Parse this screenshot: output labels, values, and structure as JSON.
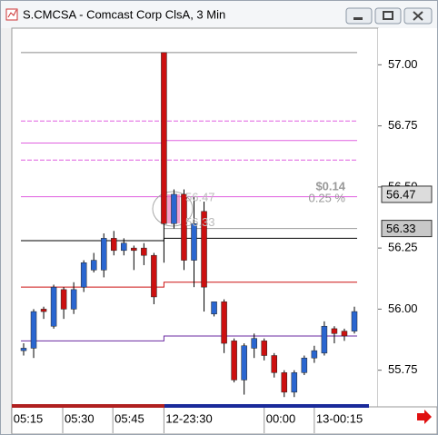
{
  "window_title": "S.CMCSA - Comcast Corp ClsA, 3 Min",
  "chart_data": {
    "type": "candlestick",
    "up_color": "#2a66d0",
    "down_color": "#cc1010",
    "ylim": [
      55.6,
      57.15
    ],
    "yticks": [
      {
        "value": 57,
        "label": "57.00"
      },
      {
        "value": 56.75,
        "label": "56.75"
      },
      {
        "value": 56.5,
        "label": "56.50"
      },
      {
        "value": 56.25,
        "label": "56.25"
      },
      {
        "value": 56,
        "label": "56.00"
      },
      {
        "value": 55.75,
        "label": "55.75"
      }
    ],
    "xticks": [
      {
        "value": -1.2,
        "label": "05:15"
      },
      {
        "value": 3.9,
        "label": "05:30"
      },
      {
        "value": 8.9,
        "label": "05:45"
      },
      {
        "value": 14,
        "label": "12-23:30"
      },
      {
        "value": 24,
        "label": "00:00"
      },
      {
        "value": 29,
        "label": "13-00:15"
      }
    ],
    "open": [
      55.83,
      55.84,
      56.0,
      55.93,
      56.08,
      56.0,
      56.09,
      56.16,
      56.16,
      56.29,
      56.24,
      56.25,
      56.25,
      56.22,
      57.05,
      56.35,
      56.47,
      56.2,
      56.4,
      55.98,
      56.03,
      55.87,
      55.71,
      55.84,
      55.87,
      55.81,
      55.74,
      55.66,
      55.74,
      55.8,
      55.82,
      55.92,
      55.91,
      55.91
    ],
    "high": [
      55.86,
      56.0,
      56.01,
      56.1,
      56.09,
      56.11,
      56.2,
      56.23,
      56.31,
      56.32,
      56.29,
      56.26,
      56.27,
      56.23,
      57.05,
      56.49,
      56.49,
      56.46,
      56.44,
      56.03,
      56.04,
      55.88,
      55.86,
      55.9,
      55.88,
      55.82,
      55.75,
      55.75,
      55.81,
      55.85,
      55.95,
      55.93,
      55.92,
      56.01
    ],
    "low": [
      55.81,
      55.8,
      55.96,
      55.92,
      55.96,
      55.98,
      56.07,
      56.15,
      56.13,
      56.22,
      56.22,
      56.16,
      56.18,
      56.02,
      56.19,
      56.33,
      56.16,
      56.09,
      55.99,
      55.97,
      55.82,
      55.7,
      55.65,
      55.8,
      55.79,
      55.72,
      55.64,
      55.64,
      55.73,
      55.78,
      55.81,
      55.86,
      55.87,
      55.9
    ],
    "close": [
      55.84,
      55.99,
      55.99,
      56.09,
      56.0,
      56.08,
      56.19,
      56.2,
      56.29,
      56.24,
      56.27,
      56.24,
      56.22,
      56.05,
      56.35,
      56.47,
      56.2,
      56.35,
      56.09,
      56.03,
      55.86,
      55.71,
      55.85,
      55.88,
      55.81,
      55.74,
      55.66,
      55.74,
      55.8,
      55.83,
      55.93,
      55.9,
      55.89,
      55.99
    ],
    "step_at": 14,
    "levels": [
      {
        "color": "#8a8a8a",
        "dashed": false,
        "values": [
          57.05,
          57.05
        ]
      },
      {
        "color": "#e060e0",
        "dashed": true,
        "values": [
          56.77,
          56.77
        ]
      },
      {
        "color": "#e060e0",
        "dashed": false,
        "values": [
          56.68,
          56.69
        ]
      },
      {
        "color": "#e060e0",
        "dashed": true,
        "values": [
          56.61,
          56.61
        ]
      },
      {
        "color": "#e060e0",
        "dashed": false,
        "values": [
          56.46,
          56.46
        ]
      },
      {
        "color": "#9a9a9a",
        "dashed": false,
        "values": [
          null,
          56.33
        ]
      },
      {
        "color": "#000000",
        "dashed": false,
        "values": [
          56.28,
          56.29
        ]
      },
      {
        "color": "#cc1010",
        "dashed": false,
        "values": [
          56.09,
          56.11
        ]
      },
      {
        "color": "#6a2aa0",
        "dashed": false,
        "values": [
          55.87,
          55.89
        ]
      }
    ],
    "price_tags": [
      56.47,
      56.33
    ],
    "measure": {
      "from": 56.33,
      "to": 56.47,
      "change": "$0.14",
      "percent": "0.25 %"
    }
  }
}
